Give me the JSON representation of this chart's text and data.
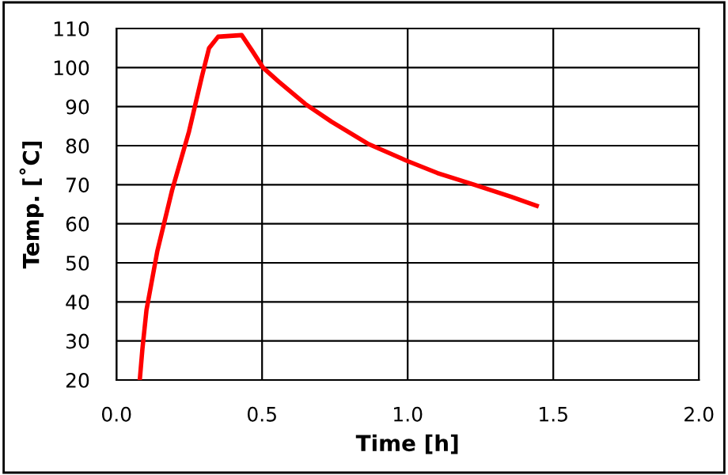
{
  "chart_data": {
    "type": "line",
    "xlabel": "Time [h]",
    "ylabel": "Temp. [˚C]",
    "series": [
      {
        "color": "#ff0000",
        "x": [
          0.08,
          0.089,
          0.103,
          0.14,
          0.191,
          0.249,
          0.294,
          0.318,
          0.349,
          0.43,
          0.466,
          0.503,
          0.557,
          0.648,
          0.739,
          0.866,
          0.998,
          1.102,
          1.229,
          1.356,
          1.443
        ],
        "values": [
          20,
          27.9,
          37.9,
          52.9,
          68.6,
          83.6,
          97.9,
          105,
          107.9,
          108.3,
          104.3,
          100,
          96.4,
          90.7,
          86.1,
          80.4,
          76.1,
          73,
          70,
          66.9,
          64.6
        ]
      }
    ],
    "xlim": [
      0,
      2
    ],
    "ylim": [
      20,
      110
    ],
    "xticks": [
      {
        "value": 0,
        "label": "0.0"
      },
      {
        "value": 0.5,
        "label": "0.5"
      },
      {
        "value": 1,
        "label": "1.0"
      },
      {
        "value": 1.5,
        "label": "1.5"
      },
      {
        "value": 2,
        "label": "2.0"
      }
    ],
    "yticks": [
      20,
      30,
      40,
      50,
      60,
      70,
      80,
      90,
      100,
      110
    ],
    "grid": true,
    "marker": "none",
    "line_style": "solid"
  }
}
